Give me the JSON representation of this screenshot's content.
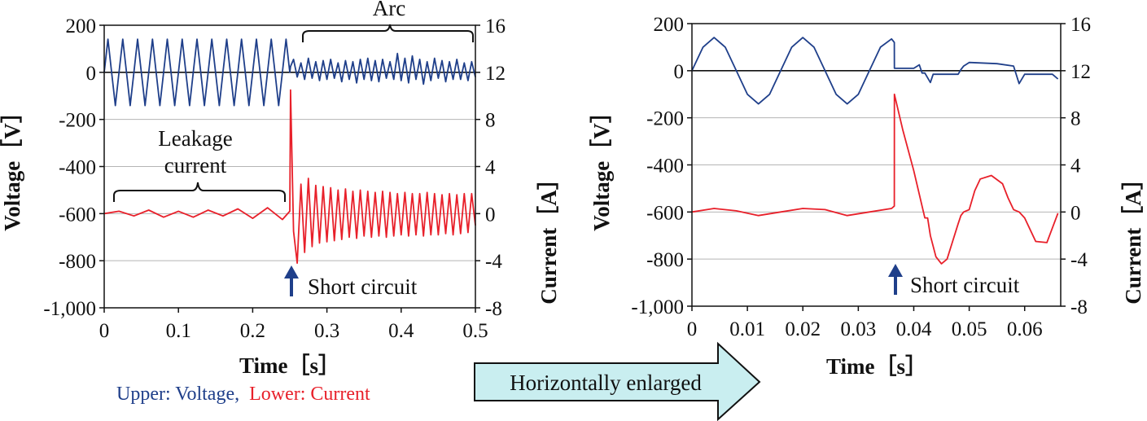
{
  "caption": {
    "upper": "Upper: Voltage,",
    "lower": "Lower: Current",
    "upper_color": "#1f3f8a",
    "lower_color": "#e8202a"
  },
  "arrow_label": "Horizontally enlarged",
  "arrow_fill": "#c9eef0",
  "chart_data": [
    {
      "type": "line",
      "xlabel": "Time［s］",
      "ylabel": "Voltage［V］",
      "y2label": "Current［A］",
      "xlim": [
        0,
        0.5
      ],
      "ylim": [
        -1000,
        200
      ],
      "y2lim": [
        -8,
        16
      ],
      "x_ticks": [
        "0",
        "0.1",
        "0.2",
        "0.3",
        "0.4",
        "0.5"
      ],
      "y_ticks": [
        "200",
        "0",
        "-200",
        "-400",
        "-600",
        "-800",
        "-1,000"
      ],
      "y2_ticks": [
        "16",
        "12",
        "8",
        "4",
        "0",
        "-4",
        "-8"
      ],
      "annotations": {
        "arc": "Arc",
        "leakage_line1": "Leakage",
        "leakage_line2": "current",
        "short_circuit": "Short circuit"
      },
      "series": [
        {
          "name": "Voltage",
          "color": "#1f3f8a",
          "axis": "left",
          "x": [
            0.0,
            0.005,
            0.01,
            0.015,
            0.02,
            0.025,
            0.03,
            0.035,
            0.04,
            0.045,
            0.05,
            0.055,
            0.06,
            0.065,
            0.07,
            0.075,
            0.08,
            0.085,
            0.09,
            0.095,
            0.1,
            0.105,
            0.11,
            0.115,
            0.12,
            0.125,
            0.13,
            0.135,
            0.14,
            0.145,
            0.15,
            0.155,
            0.16,
            0.165,
            0.17,
            0.175,
            0.18,
            0.185,
            0.19,
            0.195,
            0.2,
            0.205,
            0.21,
            0.215,
            0.22,
            0.225,
            0.23,
            0.235,
            0.24,
            0.245,
            0.25,
            0.251,
            0.255,
            0.26,
            0.265,
            0.27,
            0.275,
            0.28,
            0.285,
            0.29,
            0.295,
            0.3,
            0.305,
            0.31,
            0.315,
            0.32,
            0.325,
            0.33,
            0.335,
            0.34,
            0.345,
            0.35,
            0.355,
            0.36,
            0.365,
            0.37,
            0.375,
            0.38,
            0.385,
            0.39,
            0.395,
            0.4,
            0.405,
            0.41,
            0.415,
            0.42,
            0.425,
            0.43,
            0.435,
            0.44,
            0.445,
            0.45,
            0.455,
            0.46,
            0.465,
            0.47,
            0.475,
            0.48,
            0.485,
            0.49,
            0.495,
            0.5
          ],
          "values": [
            0,
            141,
            0,
            -141,
            0,
            141,
            0,
            -141,
            0,
            141,
            0,
            -141,
            0,
            141,
            0,
            -141,
            0,
            141,
            0,
            -141,
            0,
            141,
            0,
            -141,
            0,
            141,
            0,
            -141,
            0,
            141,
            0,
            -141,
            0,
            141,
            0,
            -141,
            0,
            141,
            0,
            -141,
            0,
            141,
            0,
            -141,
            0,
            141,
            0,
            -141,
            0,
            141,
            0,
            25,
            55,
            -20,
            40,
            -30,
            60,
            -25,
            45,
            -35,
            50,
            -30,
            55,
            -25,
            40,
            -40,
            50,
            -30,
            45,
            -45,
            55,
            -30,
            60,
            -35,
            50,
            -40,
            55,
            -25,
            45,
            -30,
            80,
            -35,
            60,
            -45,
            70,
            -30,
            55,
            -50,
            45,
            -35,
            60,
            -25,
            50,
            -40,
            45,
            -30,
            55,
            -30,
            40,
            -35,
            45,
            -20
          ]
        },
        {
          "name": "Current",
          "color": "#e8202a",
          "axis": "right",
          "x": [
            0.0,
            0.02,
            0.04,
            0.06,
            0.08,
            0.1,
            0.12,
            0.14,
            0.16,
            0.18,
            0.2,
            0.22,
            0.24,
            0.25,
            0.251,
            0.255,
            0.26,
            0.265,
            0.27,
            0.275,
            0.28,
            0.285,
            0.29,
            0.295,
            0.3,
            0.305,
            0.31,
            0.315,
            0.32,
            0.325,
            0.33,
            0.335,
            0.34,
            0.345,
            0.35,
            0.355,
            0.36,
            0.365,
            0.37,
            0.375,
            0.38,
            0.385,
            0.39,
            0.395,
            0.4,
            0.405,
            0.41,
            0.415,
            0.42,
            0.425,
            0.43,
            0.435,
            0.44,
            0.445,
            0.45,
            0.455,
            0.46,
            0.465,
            0.47,
            0.475,
            0.48,
            0.485,
            0.49,
            0.495,
            0.5
          ],
          "values": [
            0,
            0.2,
            -0.2,
            0.3,
            -0.3,
            0.2,
            -0.3,
            0.3,
            -0.2,
            0.4,
            -0.4,
            0.5,
            -0.5,
            0.2,
            10.5,
            -1.5,
            -4.2,
            2.5,
            -3.3,
            3.0,
            -2.8,
            2.4,
            -2.5,
            2.3,
            -2.4,
            2.2,
            -2.3,
            2.0,
            -2.2,
            2.1,
            -2.0,
            1.9,
            -2.1,
            2.0,
            -1.9,
            1.9,
            -2.0,
            1.8,
            -1.9,
            1.9,
            -2.0,
            1.8,
            -1.9,
            1.7,
            -1.8,
            1.8,
            -1.9,
            1.7,
            -1.8,
            1.7,
            -1.9,
            1.8,
            -1.8,
            1.7,
            -1.8,
            1.6,
            -1.7,
            1.7,
            -1.8,
            1.6,
            -1.7,
            1.7,
            -1.6,
            1.7,
            -1.0
          ]
        }
      ]
    },
    {
      "type": "line",
      "xlabel": "Time［s］",
      "ylabel": "Voltage［V］",
      "y2label": "Current［A］",
      "xlim": [
        0,
        0.0665
      ],
      "ylim": [
        -1000,
        200
      ],
      "y2lim": [
        -8,
        16
      ],
      "x_ticks": [
        "0",
        "0.01",
        "0.02",
        "0.03",
        "0.04",
        "0.05",
        "0.06"
      ],
      "y_ticks": [
        "200",
        "0",
        "-200",
        "-400",
        "-600",
        "-800",
        "-1,000"
      ],
      "y2_ticks": [
        "16",
        "12",
        "8",
        "4",
        "0",
        "-4",
        "-8"
      ],
      "annotations": {
        "short_circuit": "Short circuit"
      },
      "series": [
        {
          "name": "Voltage",
          "color": "#1f3f8a",
          "axis": "left",
          "x": [
            0.0,
            0.002,
            0.004,
            0.006,
            0.008,
            0.01,
            0.012,
            0.014,
            0.016,
            0.018,
            0.02,
            0.022,
            0.024,
            0.026,
            0.028,
            0.03,
            0.032,
            0.034,
            0.036,
            0.0365,
            0.03651,
            0.04,
            0.041,
            0.0415,
            0.042,
            0.043,
            0.0435,
            0.044,
            0.048,
            0.0485,
            0.049,
            0.05,
            0.055,
            0.058,
            0.059,
            0.06,
            0.065,
            0.066
          ],
          "values": [
            0,
            100,
            141,
            100,
            0,
            -100,
            -141,
            -100,
            0,
            100,
            141,
            100,
            0,
            -100,
            -141,
            -100,
            0,
            100,
            135,
            120,
            10,
            10,
            25,
            -10,
            -10,
            -50,
            -15,
            -15,
            -15,
            5,
            20,
            35,
            30,
            20,
            -55,
            -15,
            -15,
            -35
          ]
        },
        {
          "name": "Current",
          "color": "#e8202a",
          "axis": "right",
          "x": [
            0.0,
            0.004,
            0.008,
            0.012,
            0.016,
            0.02,
            0.024,
            0.028,
            0.032,
            0.036,
            0.0365,
            0.03651,
            0.038,
            0.04,
            0.042,
            0.0425,
            0.043,
            0.044,
            0.045,
            0.046,
            0.047,
            0.048,
            0.0485,
            0.049,
            0.05,
            0.051,
            0.052,
            0.054,
            0.056,
            0.057,
            0.058,
            0.059,
            0.06,
            0.062,
            0.064,
            0.066
          ],
          "values": [
            0,
            0.3,
            0.1,
            -0.3,
            0,
            0.3,
            0.2,
            -0.3,
            0,
            0.3,
            0.5,
            10.0,
            7.0,
            3.5,
            -0.5,
            -0.5,
            -2.0,
            -3.8,
            -4.4,
            -4.0,
            -2.5,
            -1.0,
            -0.3,
            0,
            0.2,
            1.8,
            2.8,
            3.1,
            2.4,
            1.2,
            0.2,
            0,
            -0.5,
            -2.5,
            -2.6,
            -0.1
          ]
        }
      ]
    }
  ]
}
